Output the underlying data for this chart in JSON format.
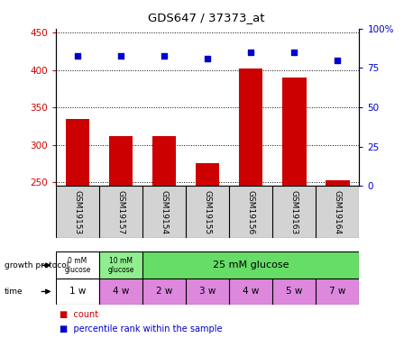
{
  "title": "GDS647 / 37373_at",
  "samples": [
    "GSM19153",
    "GSM19157",
    "GSM19154",
    "GSM19155",
    "GSM19156",
    "GSM19163",
    "GSM19164"
  ],
  "counts": [
    335,
    311,
    311,
    275,
    402,
    390,
    252
  ],
  "percentile_ranks": [
    83,
    83,
    83,
    81,
    85,
    85,
    80
  ],
  "ylim_left": [
    245,
    455
  ],
  "ylim_right": [
    0,
    100
  ],
  "yticks_left": [
    250,
    300,
    350,
    400,
    450
  ],
  "yticks_right": [
    0,
    25,
    50,
    75,
    100
  ],
  "bar_color": "#cc0000",
  "dot_color": "#0000cc",
  "growth_protocol_colors": [
    "#ffffff",
    "#90ee90",
    "#90ee90"
  ],
  "time_colors": [
    "#ffffff",
    "#ee88ee",
    "#ee88ee",
    "#ee88ee",
    "#ee88ee",
    "#ee88ee",
    "#ee88ee"
  ],
  "time_labels": [
    "1 w",
    "4 w",
    "2 w",
    "3 w",
    "4 w",
    "5 w",
    "7 w"
  ],
  "legend_count_color": "#cc0000",
  "legend_pct_color": "#0000cc"
}
